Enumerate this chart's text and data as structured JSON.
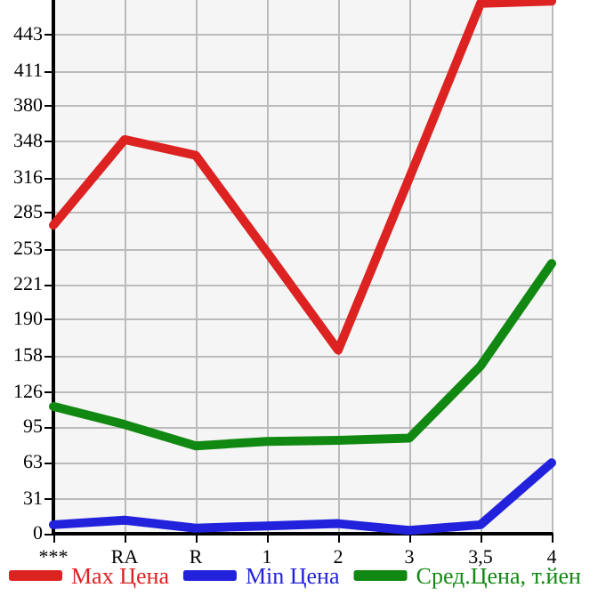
{
  "chart_data": {
    "type": "line",
    "categories": [
      "***",
      "RA",
      "R",
      "1",
      "2",
      "3",
      "3,5",
      "4"
    ],
    "series": [
      {
        "name": "Max Цена",
        "color": "#dd2222",
        "values": [
          274,
          350,
          336,
          250,
          163,
          316,
          471,
          473
        ]
      },
      {
        "name": "Min Цена",
        "color": "#2222dd",
        "values": [
          8,
          12,
          5,
          7,
          9,
          3,
          8,
          63
        ]
      },
      {
        "name": "Сред.Цена, т.йен",
        "color": "#118811",
        "values": [
          113,
          97,
          78,
          82,
          83,
          85,
          149,
          240
        ]
      }
    ],
    "ylim": [
      0,
      474
    ],
    "yticks": [
      0,
      31,
      63,
      95,
      126,
      158,
      190,
      221,
      253,
      285,
      316,
      348,
      380,
      411,
      443
    ],
    "grid": true,
    "legend": "bottom",
    "marker": "none",
    "line_style": "solid"
  }
}
